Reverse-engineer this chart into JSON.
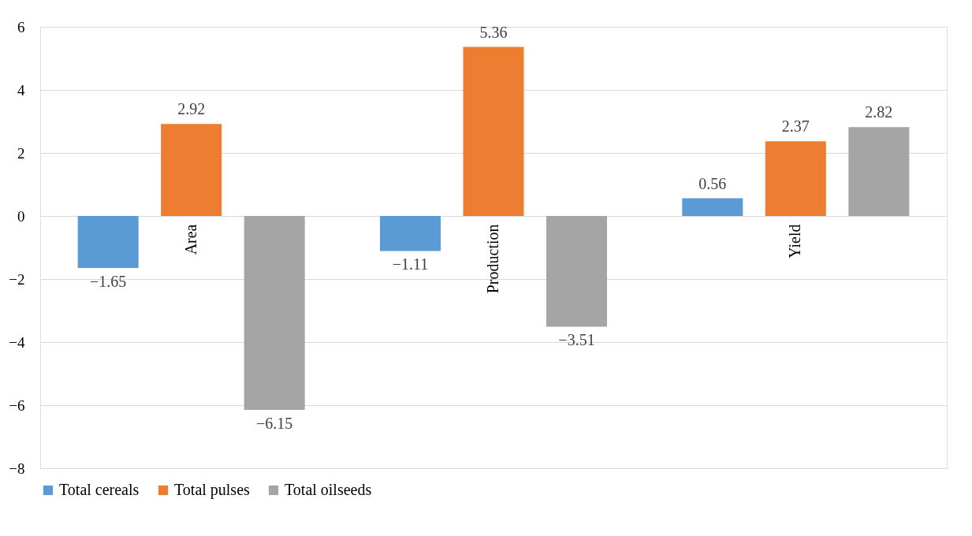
{
  "chart_data": {
    "type": "bar",
    "categories": [
      "Area",
      "Production",
      "Yield"
    ],
    "series": [
      {
        "name": "Total cereals",
        "color": "#5b9bd5",
        "values": [
          -1.65,
          -1.11,
          0.56
        ]
      },
      {
        "name": "Total pulses",
        "color": "#ed7d31",
        "values": [
          2.92,
          5.36,
          2.37
        ]
      },
      {
        "name": "Total oilseeds",
        "color": "#a5a5a5",
        "values": [
          -6.15,
          -3.51,
          2.82
        ]
      }
    ],
    "ylim": [
      -8,
      6
    ],
    "yticks": [
      -8,
      -6,
      -4,
      -2,
      0,
      2,
      4,
      6
    ],
    "grid": "y",
    "legend": "bottom",
    "data_labels": true
  }
}
